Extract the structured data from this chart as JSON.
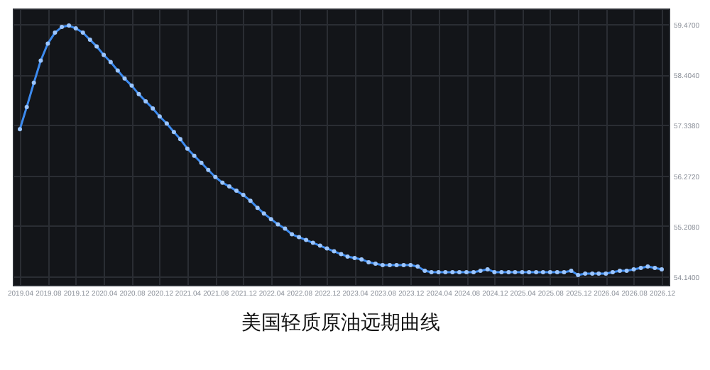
{
  "chart_data": {
    "type": "line",
    "title": "美国轻质原油远期曲线",
    "x": [
      "2019-04",
      "2019-05",
      "2019-06",
      "2019-07",
      "2019-08",
      "2019-09",
      "2019-10",
      "2019-11",
      "2019-12",
      "2020-01",
      "2020-02",
      "2020-03",
      "2020-04",
      "2020-05",
      "2020-06",
      "2020-07",
      "2020-08",
      "2020-09",
      "2020-10",
      "2020-11",
      "2020-12",
      "2021-01",
      "2021-02",
      "2021-03",
      "2021-04",
      "2021-05",
      "2021-06",
      "2021-07",
      "2021-08",
      "2021-09",
      "2021-10",
      "2021-11",
      "2021-12",
      "2022-01",
      "2022-02",
      "2022-03",
      "2022-04",
      "2022-05",
      "2022-06",
      "2022-07",
      "2022-08",
      "2022-09",
      "2022-10",
      "2022-11",
      "2022-12",
      "2023-01",
      "2023-02",
      "2023-03",
      "2023-04",
      "2023-05",
      "2023-06",
      "2023-07",
      "2023-08",
      "2023-09",
      "2023-10",
      "2023-11",
      "2023-12",
      "2024-01",
      "2024-02",
      "2024-03",
      "2024-04",
      "2024-05",
      "2024-06",
      "2024-07",
      "2024-08",
      "2024-09",
      "2024-10",
      "2024-11",
      "2024-12",
      "2025-01",
      "2025-02",
      "2025-03",
      "2025-04",
      "2025-05",
      "2025-06",
      "2025-07",
      "2025-08",
      "2025-09",
      "2025-10",
      "2025-11",
      "2025-12",
      "2026-01",
      "2026-02",
      "2026-03",
      "2026-04",
      "2026-05",
      "2026-06",
      "2026-07",
      "2026-08",
      "2026-09",
      "2026-10",
      "2026-11",
      "2026-12"
    ],
    "series": [
      {
        "color": "#3d8bef",
        "values": [
          57.25,
          57.72,
          58.23,
          58.7,
          59.06,
          59.29,
          59.41,
          59.44,
          59.38,
          59.29,
          59.14,
          59.0,
          58.82,
          58.67,
          58.49,
          58.32,
          58.17,
          57.99,
          57.84,
          57.69,
          57.52,
          57.37,
          57.19,
          57.04,
          56.84,
          56.69,
          56.54,
          56.39,
          56.24,
          56.12,
          56.04,
          55.95,
          55.86,
          55.74,
          55.59,
          55.47,
          55.35,
          55.24,
          55.15,
          55.03,
          54.97,
          54.91,
          54.85,
          54.79,
          54.73,
          54.67,
          54.61,
          54.56,
          54.53,
          54.5,
          54.44,
          54.41,
          54.38,
          54.38,
          54.38,
          54.38,
          54.38,
          54.35,
          54.26,
          54.23,
          54.23,
          54.23,
          54.23,
          54.23,
          54.23,
          54.23,
          54.26,
          54.29,
          54.23,
          54.23,
          54.23,
          54.23,
          54.23,
          54.23,
          54.23,
          54.23,
          54.23,
          54.23,
          54.23,
          54.26,
          54.17,
          54.2,
          54.2,
          54.2,
          54.2,
          54.23,
          54.26,
          54.26,
          54.29,
          54.32,
          54.35,
          54.32,
          54.29
        ]
      }
    ],
    "xlim": [
      "2019-03",
      "2027-01"
    ],
    "xticks": [
      {
        "value": "2019-04",
        "label": "2019.04"
      },
      {
        "value": "2019-08",
        "label": "2019.08"
      },
      {
        "value": "2019-12",
        "label": "2019.12"
      },
      {
        "value": "2020-04",
        "label": "2020.04"
      },
      {
        "value": "2020-08",
        "label": "2020.08"
      },
      {
        "value": "2020-12",
        "label": "2020.12"
      },
      {
        "value": "2021-04",
        "label": "2021.04"
      },
      {
        "value": "2021-08",
        "label": "2021.08"
      },
      {
        "value": "2021-12",
        "label": "2021.12"
      },
      {
        "value": "2022-04",
        "label": "2022.04"
      },
      {
        "value": "2022-08",
        "label": "2022.08"
      },
      {
        "value": "2022-12",
        "label": "2022.12"
      },
      {
        "value": "2023-04",
        "label": "2023.04"
      },
      {
        "value": "2023-08",
        "label": "2023.08"
      },
      {
        "value": "2023-12",
        "label": "2023.12"
      },
      {
        "value": "2024-04",
        "label": "2024.04"
      },
      {
        "value": "2024-08",
        "label": "2024.08"
      },
      {
        "value": "2024-12",
        "label": "2024.12"
      },
      {
        "value": "2025-04",
        "label": "2025.04"
      },
      {
        "value": "2025-08",
        "label": "2025.08"
      },
      {
        "value": "2025-12",
        "label": "2025.12"
      },
      {
        "value": "2026-04",
        "label": "2026.04"
      },
      {
        "value": "2026-08",
        "label": "2026.08"
      },
      {
        "value": "2026-12",
        "label": "2026.12"
      }
    ],
    "ylim": [
      53.96,
      59.8
    ],
    "yticks": [
      {
        "value": 54.14,
        "label": "54.1400"
      },
      {
        "value": 55.208,
        "label": "55.2080"
      },
      {
        "value": 56.272,
        "label": "56.2720"
      },
      {
        "value": 57.338,
        "label": "57.3380"
      },
      {
        "value": 58.404,
        "label": "58.4040"
      },
      {
        "value": 59.47,
        "label": "59.4700"
      }
    ],
    "grid": true,
    "marker": "circle",
    "line_style": "solid"
  }
}
